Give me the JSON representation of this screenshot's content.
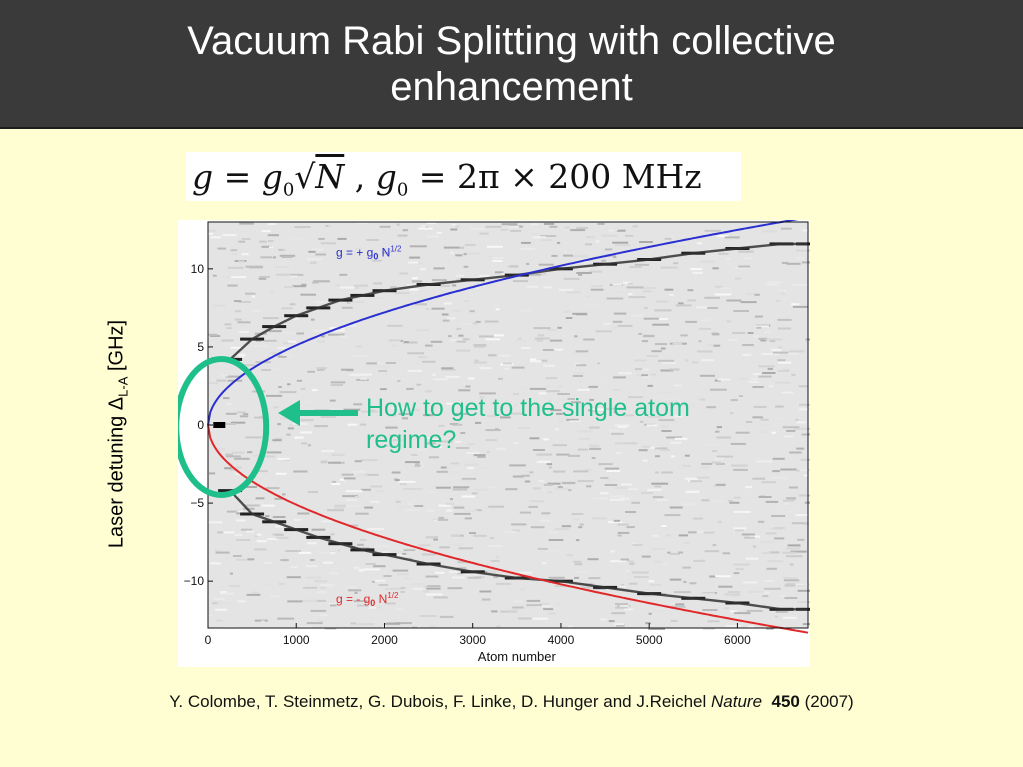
{
  "slide": {
    "title_line1": "Vacuum Rabi Splitting with collective",
    "title_line2": "enhancement",
    "formula": {
      "lhs": "g",
      "eq1": " = ",
      "g0": "g",
      "g0_sub": "0",
      "sqrt": "√",
      "N": "N",
      "sep": " , ",
      "g0b": "g",
      "g0b_sub": "0",
      "rhs": " = 2π × 200 MHz"
    },
    "ylabel_prefix": "Laser detuning Δ",
    "ylabel_sub": "L-A",
    "ylabel_suffix": " [GHz]",
    "annotation_line1": "How to get to the single atom",
    "annotation_line2": "regime?",
    "citation": {
      "authors": "Y. Colombe, T. Steinmetz, G. Dubois, F. Linke, D. Hunger and J.Reichel ",
      "journal": "Nature",
      "volume": "450",
      "year": " (2007)"
    }
  },
  "colors": {
    "background": "#fefed2",
    "title_bar": "#3a3a3a",
    "upper_branch": "#2a2fd0",
    "lower_branch": "#e0282a",
    "annotation": "#1fbf8c"
  },
  "chart_data": {
    "type": "scatter",
    "xlabel": "Atom number",
    "ylabel": "",
    "xlim": [
      0,
      6800
    ],
    "ylim": [
      -13,
      13
    ],
    "x_ticks": [
      0,
      1000,
      2000,
      3000,
      4000,
      5000,
      6000
    ],
    "y_ticks": [
      10,
      5,
      0,
      -5,
      -10
    ],
    "y_tick_labels": [
      "10",
      "5",
      "0",
      "−5",
      "−10"
    ],
    "series": [
      {
        "name": "measured upper branch",
        "x": [
          250,
          500,
          750,
          1000,
          1250,
          1500,
          1750,
          2000,
          2500,
          3000,
          3500,
          4000,
          4500,
          5000,
          5500,
          6000,
          6500,
          6800
        ],
        "y": [
          4.2,
          5.5,
          6.3,
          7.0,
          7.5,
          8.0,
          8.3,
          8.6,
          9.0,
          9.3,
          9.6,
          10.0,
          10.3,
          10.6,
          11.0,
          11.3,
          11.6,
          11.6
        ]
      },
      {
        "name": "measured lower branch",
        "x": [
          250,
          500,
          750,
          1000,
          1250,
          1500,
          1750,
          2000,
          2500,
          3000,
          3500,
          4000,
          4500,
          5000,
          5500,
          6000,
          6500,
          6800
        ],
        "y": [
          -4.2,
          -5.7,
          -6.2,
          -6.7,
          -7.2,
          -7.6,
          -8.0,
          -8.3,
          -8.9,
          -9.4,
          -9.8,
          -10.0,
          -10.4,
          -10.8,
          -11.1,
          -11.4,
          -11.8,
          -11.8
        ]
      },
      {
        "name": "g = + g0 N1/2",
        "formula": "10.2 * sqrt(N/4000)"
      },
      {
        "name": "g = - g0 N1/2",
        "formula": "-10.2 * sqrt(N/4000)"
      }
    ],
    "annotations": [
      {
        "text_prefix": "g = + g",
        "text_sub": "0",
        "text_n": " N",
        "text_sup": "1/2",
        "color": "#2a2fd0"
      },
      {
        "text_prefix": "g = - g",
        "text_sub": "0",
        "text_n": " N",
        "text_sup": "1/2",
        "color": "#e0282a"
      }
    ],
    "highlight": {
      "shape": "ellipse",
      "x_center": 150,
      "y_center": 0,
      "color": "#1fbf8c"
    },
    "grid": false
  }
}
